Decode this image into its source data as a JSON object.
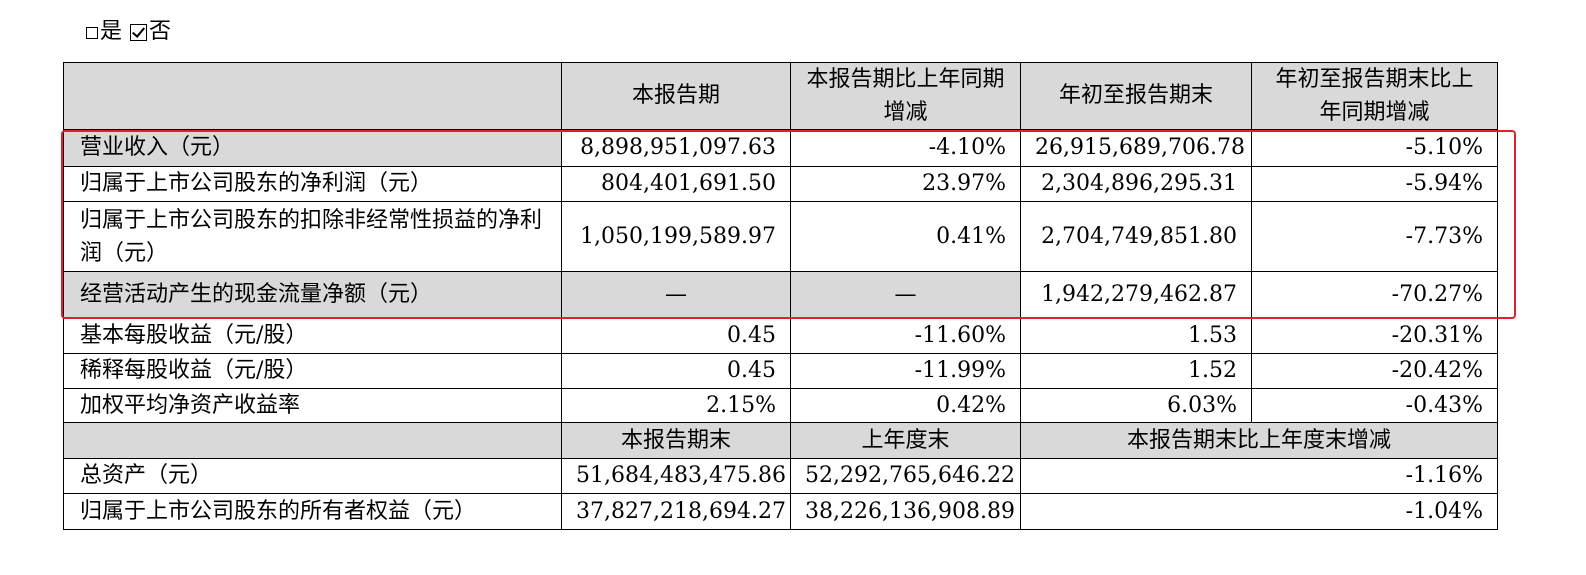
{
  "selection": {
    "option_yes": "是",
    "option_no": "否",
    "checked": "否"
  },
  "table": {
    "header": [
      "本报告期",
      "本报告期比上年同期增减",
      "年初至报告期末",
      "年初至报告期末比上年同期增减"
    ],
    "rows": [
      {
        "label": "营业收入（元）",
        "cells": [
          "8,898,951,097.63",
          "-4.10%",
          "26,915,689,706.78",
          "-5.10%"
        ]
      },
      {
        "label": "归属于上市公司股东的净利润（元）",
        "cells": [
          "804,401,691.50",
          "23.97%",
          "2,304,896,295.31",
          "-5.94%"
        ]
      },
      {
        "label": "归属于上市公司股东的扣除非经常性损益的净利润（元）",
        "cells": [
          "1,050,199,589.97",
          "0.41%",
          "2,704,749,851.80",
          "-7.73%"
        ]
      },
      {
        "label": "经营活动产生的现金流量净额（元）",
        "cells": [
          "—",
          "—",
          "1,942,279,462.87",
          "-70.27%"
        ]
      },
      {
        "label": "基本每股收益（元/股）",
        "cells": [
          "0.45",
          "-11.60%",
          "1.53",
          "-20.31%"
        ]
      },
      {
        "label": "稀释每股收益（元/股）",
        "cells": [
          "0.45",
          "-11.99%",
          "1.52",
          "-20.42%"
        ]
      },
      {
        "label": "加权平均净资产收益率",
        "cells": [
          "2.15%",
          "0.42%",
          "6.03%",
          "-0.43%"
        ]
      }
    ],
    "header2": [
      "本报告期末",
      "上年度末",
      "本报告期末比上年度末增减"
    ],
    "rows2": [
      {
        "label": "总资产（元）",
        "cells": [
          "51,684,483,475.86",
          "52,292,765,646.22",
          "-1.16%"
        ]
      },
      {
        "label": "归属于上市公司股东的所有者权益（元）",
        "cells": [
          "37,827,218,694.27",
          "38,226,136,908.89",
          "-1.04%"
        ]
      }
    ]
  },
  "highlight_color": "#e0202a",
  "header_fill": "#d9d9d9"
}
